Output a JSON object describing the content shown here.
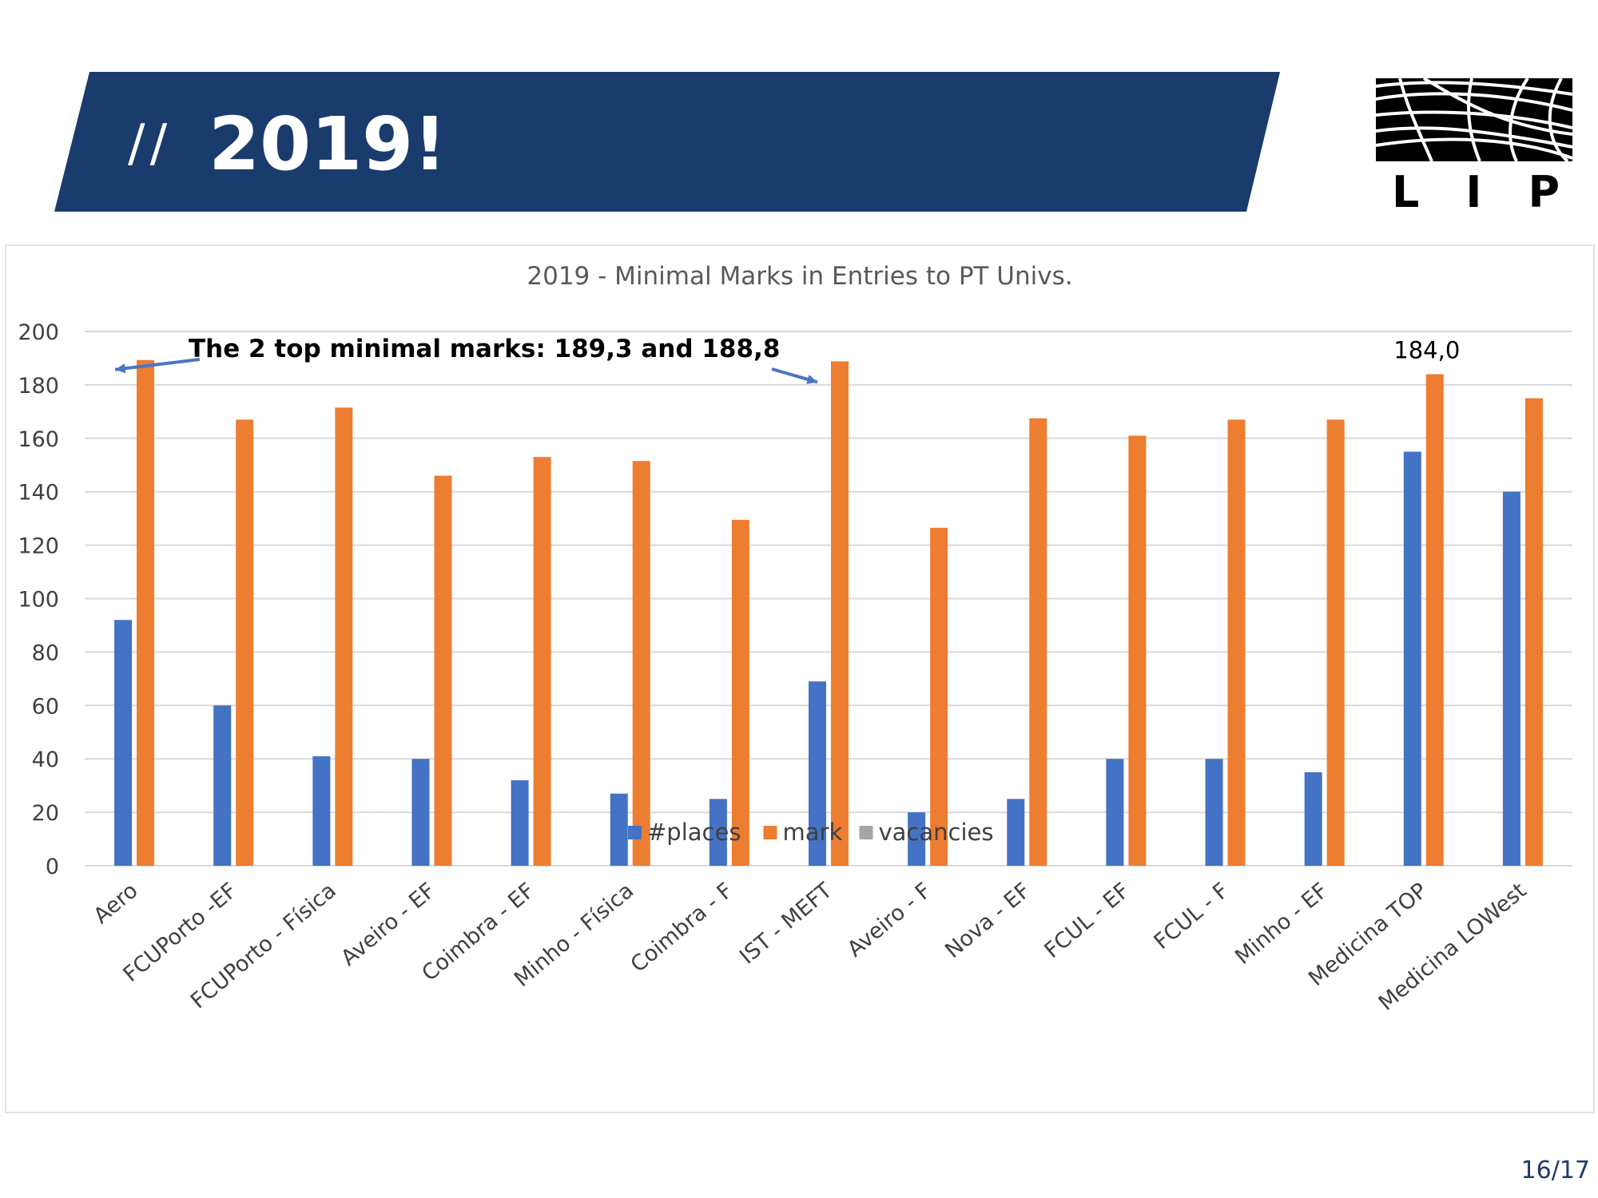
{
  "slide": {
    "title_prefix": "//",
    "title": "2019!",
    "page_number": "16/17"
  },
  "logo": {
    "text": "LIP"
  },
  "colors": {
    "banner": "#1a3c6c",
    "places": "#4472c4",
    "mark": "#ed7d31",
    "vacancies": "#a5a5a5",
    "grid": "#d9d9d9",
    "axis_text": "#404040",
    "arrow": "#4a75c4"
  },
  "chart_data": {
    "type": "bar",
    "title": "2019 - Minimal Marks in Entries to PT Univs.",
    "xlabel": "",
    "ylabel": "",
    "ylim": [
      0,
      200
    ],
    "yticks": [
      0,
      20,
      40,
      60,
      80,
      100,
      120,
      140,
      160,
      180,
      200
    ],
    "grid": true,
    "legend_position": "bottom",
    "categories": [
      "Aero",
      "FCUPorto -EF",
      "FCUPorto - Física",
      "Aveiro - EF",
      "Coimbra - EF",
      "Minho - Física",
      "Coimbra - F",
      "IST - MEFT",
      "Aveiro - F",
      "Nova - EF",
      "FCUL - EF",
      "FCUL - F",
      "Minho - EF",
      "Medicina TOP",
      "Medicina LOWest"
    ],
    "series": [
      {
        "name": "#places",
        "values": [
          92,
          60,
          41,
          40,
          32,
          27,
          25,
          69,
          20,
          25,
          40,
          40,
          35,
          155,
          140
        ]
      },
      {
        "name": "mark",
        "values": [
          189.3,
          167,
          171.5,
          146,
          153,
          151.5,
          129.5,
          188.8,
          126.5,
          167.5,
          161,
          167,
          167,
          184.0,
          175
        ]
      },
      {
        "name": "vacancies",
        "values": [
          0,
          0,
          0,
          0,
          0,
          0,
          0,
          0,
          0,
          0,
          0,
          0,
          0,
          0,
          0
        ]
      }
    ],
    "annotations": [
      {
        "text": "The 2 top minimal marks:  189,3 and 188,8",
        "targets": [
          "Aero",
          "IST - MEFT"
        ],
        "series": "mark"
      },
      {
        "text": "184,0",
        "target": "Medicina TOP",
        "series": "mark"
      }
    ]
  }
}
